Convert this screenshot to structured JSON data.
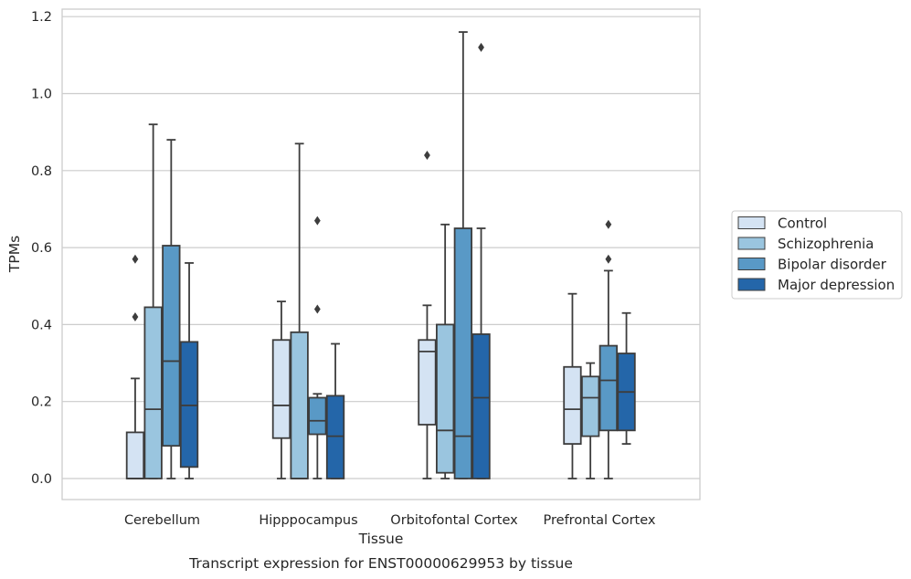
{
  "chart_data": {
    "type": "box",
    "caption": "Transcript expression for ENST00000629953 by tissue",
    "xlabel": "Tissue",
    "ylabel": "TPMs",
    "ylim": [
      -0.055,
      1.22
    ],
    "yticks": [
      "0.0",
      "0.2",
      "0.4",
      "0.6",
      "0.8",
      "1.0",
      "1.2"
    ],
    "ytick_values": [
      0.0,
      0.2,
      0.4,
      0.6,
      0.8,
      1.0,
      1.2
    ],
    "grid": "horizontal",
    "legend_position": "right",
    "categories": [
      "Cerebellum",
      "Hipppocampus",
      "Orbitofontal Cortex",
      "Prefrontal Cortex"
    ],
    "series": [
      {
        "name": "Control",
        "color": "#d4e3f3",
        "boxes": [
          {
            "whislo": 0.0,
            "q1": 0.0,
            "med": 0.0,
            "q3": 0.12,
            "whishi": 0.26,
            "fliers": [
              0.42,
              0.57
            ]
          },
          {
            "whislo": 0.0,
            "q1": 0.105,
            "med": 0.19,
            "q3": 0.36,
            "whishi": 0.46,
            "fliers": []
          },
          {
            "whislo": 0.0,
            "q1": 0.14,
            "med": 0.33,
            "q3": 0.36,
            "whishi": 0.45,
            "fliers": [
              0.84
            ]
          },
          {
            "whislo": 0.0,
            "q1": 0.09,
            "med": 0.18,
            "q3": 0.29,
            "whishi": 0.48,
            "fliers": []
          }
        ]
      },
      {
        "name": "Schizophrenia",
        "color": "#9ac5df",
        "boxes": [
          {
            "whislo": 0.0,
            "q1": 0.0,
            "med": 0.18,
            "q3": 0.445,
            "whishi": 0.92,
            "fliers": []
          },
          {
            "whislo": 0.0,
            "q1": 0.0,
            "med": 0.0,
            "q3": 0.38,
            "whishi": 0.87,
            "fliers": []
          },
          {
            "whislo": 0.0,
            "q1": 0.015,
            "med": 0.125,
            "q3": 0.4,
            "whishi": 0.66,
            "fliers": []
          },
          {
            "whislo": 0.0,
            "q1": 0.11,
            "med": 0.21,
            "q3": 0.265,
            "whishi": 0.3,
            "fliers": []
          }
        ]
      },
      {
        "name": "Bipolar disorder",
        "color": "#5999c6",
        "boxes": [
          {
            "whislo": 0.0,
            "q1": 0.085,
            "med": 0.305,
            "q3": 0.605,
            "whishi": 0.88,
            "fliers": []
          },
          {
            "whislo": 0.0,
            "q1": 0.115,
            "med": 0.15,
            "q3": 0.21,
            "whishi": 0.22,
            "fliers": [
              0.44,
              0.67
            ]
          },
          {
            "whislo": 0.0,
            "q1": 0.0,
            "med": 0.11,
            "q3": 0.65,
            "whishi": 1.16,
            "fliers": []
          },
          {
            "whislo": 0.0,
            "q1": 0.125,
            "med": 0.255,
            "q3": 0.345,
            "whishi": 0.54,
            "fliers": [
              0.57,
              0.66
            ]
          }
        ]
      },
      {
        "name": "Major depression",
        "color": "#2466a9",
        "boxes": [
          {
            "whislo": 0.0,
            "q1": 0.03,
            "med": 0.19,
            "q3": 0.355,
            "whishi": 0.56,
            "fliers": []
          },
          {
            "whislo": 0.0,
            "q1": 0.0,
            "med": 0.11,
            "q3": 0.215,
            "whishi": 0.35,
            "fliers": []
          },
          {
            "whislo": 0.0,
            "q1": 0.0,
            "med": 0.21,
            "q3": 0.375,
            "whishi": 0.65,
            "fliers": [
              1.12
            ]
          },
          {
            "whislo": 0.09,
            "q1": 0.125,
            "med": 0.225,
            "q3": 0.325,
            "whishi": 0.43,
            "fliers": []
          }
        ]
      }
    ]
  }
}
